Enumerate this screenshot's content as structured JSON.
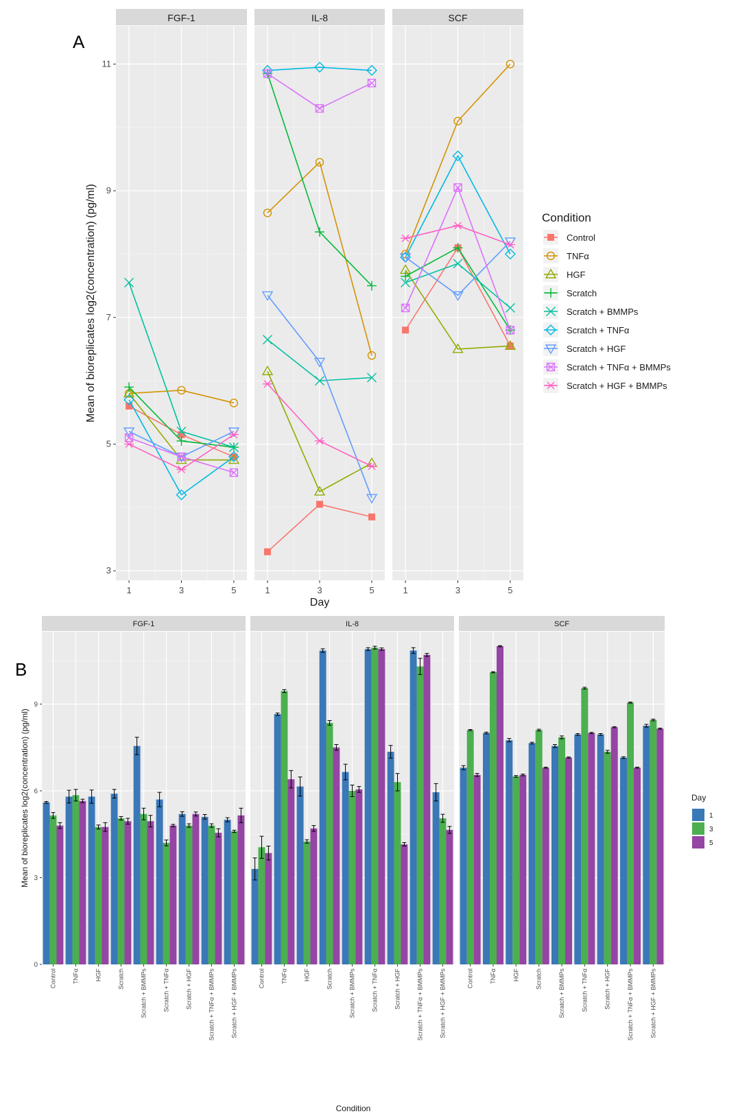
{
  "panel_a_label": "A",
  "panel_b_label": "B",
  "chart_data": [
    {
      "type": "line",
      "title": "",
      "facets": [
        "FGF-1",
        "IL-8",
        "SCF"
      ],
      "x": [
        1,
        3,
        5
      ],
      "x_ticks": [
        "1",
        "3",
        "5"
      ],
      "xlabel": "Day",
      "ylabel": "Mean of bioreplicates log2(concentration) (pg/ml)",
      "ylim": [
        2.85,
        11.6
      ],
      "y_ticks": [
        3,
        5,
        7,
        9,
        11
      ],
      "y_tick_labels": [
        "3",
        "5",
        "7",
        "9",
        "11"
      ],
      "legend_title": "Condition",
      "legend_position": "right",
      "series": [
        {
          "name": "Control",
          "color": "#F8766D",
          "marker": "square-filled",
          "values": {
            "FGF-1": [
              5.6,
              5.15,
              4.8
            ],
            "IL-8": [
              3.3,
              4.05,
              3.85
            ],
            "SCF": [
              6.8,
              8.1,
              6.55
            ]
          }
        },
        {
          "name": "TNFα",
          "color": "#D39200",
          "marker": "circle",
          "values": {
            "FGF-1": [
              5.8,
              5.85,
              5.65
            ],
            "IL-8": [
              8.65,
              9.45,
              6.4
            ],
            "SCF": [
              8.0,
              10.1,
              11.0
            ]
          }
        },
        {
          "name": "HGF",
          "color": "#93AA00",
          "marker": "triangle-up",
          "values": {
            "FGF-1": [
              5.8,
              4.75,
              4.75
            ],
            "IL-8": [
              6.15,
              4.25,
              4.7
            ],
            "SCF": [
              7.75,
              6.5,
              6.55
            ]
          }
        },
        {
          "name": "Scratch",
          "color": "#00BA38",
          "marker": "plus",
          "values": {
            "FGF-1": [
              5.9,
              5.05,
              4.95
            ],
            "IL-8": [
              10.85,
              8.35,
              7.5
            ],
            "SCF": [
              7.65,
              8.1,
              6.8
            ]
          }
        },
        {
          "name": "Scratch + BMMPs",
          "color": "#00C19F",
          "marker": "cross",
          "values": {
            "FGF-1": [
              7.55,
              5.2,
              4.95
            ],
            "IL-8": [
              6.65,
              6.0,
              6.05
            ],
            "SCF": [
              7.55,
              7.85,
              7.15
            ]
          }
        },
        {
          "name": "Scratch + TNFα",
          "color": "#00B9E3",
          "marker": "diamond",
          "values": {
            "FGF-1": [
              5.7,
              4.2,
              4.8
            ],
            "IL-8": [
              10.9,
              10.95,
              10.9
            ],
            "SCF": [
              7.95,
              9.55,
              8.0
            ]
          }
        },
        {
          "name": "Scratch + HGF",
          "color": "#619CFF",
          "marker": "triangle-down",
          "values": {
            "FGF-1": [
              5.2,
              4.8,
              5.2
            ],
            "IL-8": [
              7.35,
              6.3,
              4.15
            ],
            "SCF": [
              7.95,
              7.35,
              8.2
            ]
          }
        },
        {
          "name": "Scratch + TNFα + BMMPs",
          "color": "#DB72FB",
          "marker": "square-cross",
          "values": {
            "FGF-1": [
              5.1,
              4.8,
              4.55
            ],
            "IL-8": [
              10.85,
              10.3,
              10.7
            ],
            "SCF": [
              7.15,
              9.05,
              6.8
            ]
          }
        },
        {
          "name": "Scratch + HGF + BMMPs",
          "color": "#FF61C3",
          "marker": "asterisk",
          "values": {
            "FGF-1": [
              5.0,
              4.6,
              5.15
            ],
            "IL-8": [
              5.95,
              5.05,
              4.65
            ],
            "SCF": [
              8.25,
              8.45,
              8.15
            ]
          }
        }
      ]
    },
    {
      "type": "bar",
      "title": "",
      "facets": [
        "FGF-1",
        "IL-8",
        "SCF"
      ],
      "categories": [
        "Control",
        "TNFα",
        "HGF",
        "Scratch",
        "Scratch + BMMPs",
        "Scratch + TNFα",
        "Scratch + HGF",
        "Scratch + TNFα + BMMPs",
        "Scratch + HGF + BMMPs"
      ],
      "xlabel": "Condition",
      "ylabel": "Mean of bioreplicates log2(concentration) (pg/ml)",
      "ylim": [
        0,
        11.5
      ],
      "y_ticks": [
        0,
        3,
        6,
        9
      ],
      "y_tick_labels": [
        "0",
        "3",
        "6",
        "9"
      ],
      "legend_title": "Day",
      "legend_position": "right",
      "series": [
        {
          "name": "1",
          "color": "#3A78B8",
          "values": {
            "FGF-1": [
              5.6,
              5.8,
              5.8,
              5.9,
              7.55,
              5.7,
              5.2,
              5.1,
              5.0
            ],
            "IL-8": [
              3.3,
              8.65,
              6.15,
              10.85,
              6.65,
              10.9,
              7.35,
              10.85,
              5.95
            ],
            "SCF": [
              6.8,
              8.0,
              7.75,
              7.65,
              7.55,
              7.95,
              7.95,
              7.15,
              8.25
            ]
          },
          "errors": {
            "FGF-1": [
              0.03,
              0.22,
              0.23,
              0.15,
              0.3,
              0.25,
              0.08,
              0.08,
              0.07
            ],
            "IL-8": [
              0.38,
              0.04,
              0.33,
              0.06,
              0.27,
              0.05,
              0.22,
              0.1,
              0.3
            ],
            "SCF": [
              0.07,
              0.03,
              0.06,
              0.03,
              0.05,
              0.03,
              0.03,
              0.03,
              0.05
            ]
          }
        },
        {
          "name": "3",
          "color": "#4CAF50",
          "values": {
            "FGF-1": [
              5.15,
              5.85,
              4.75,
              5.05,
              5.2,
              4.2,
              4.8,
              4.8,
              4.6
            ],
            "IL-8": [
              4.05,
              9.45,
              4.25,
              8.35,
              6.0,
              10.95,
              6.3,
              10.3,
              5.05
            ],
            "SCF": [
              8.1,
              10.1,
              6.5,
              8.1,
              7.85,
              9.55,
              7.35,
              9.05,
              8.45
            ]
          },
          "errors": {
            "FGF-1": [
              0.1,
              0.2,
              0.07,
              0.06,
              0.2,
              0.1,
              0.06,
              0.06,
              0.04
            ],
            "IL-8": [
              0.38,
              0.05,
              0.06,
              0.08,
              0.2,
              0.05,
              0.3,
              0.28,
              0.14
            ],
            "SCF": [
              0.02,
              0.02,
              0.03,
              0.03,
              0.05,
              0.03,
              0.05,
              0.02,
              0.03
            ]
          }
        },
        {
          "name": "5",
          "color": "#9545A3",
          "values": {
            "FGF-1": [
              4.8,
              5.65,
              4.75,
              4.95,
              4.95,
              4.8,
              5.2,
              4.55,
              5.15
            ],
            "IL-8": [
              3.85,
              6.4,
              4.7,
              7.5,
              6.05,
              10.9,
              4.15,
              10.7,
              4.65
            ],
            "SCF": [
              6.55,
              11.0,
              6.55,
              6.8,
              7.15,
              8.0,
              8.2,
              6.8,
              8.15
            ]
          },
          "errors": {
            "FGF-1": [
              0.1,
              0.06,
              0.15,
              0.1,
              0.2,
              0.04,
              0.07,
              0.14,
              0.25
            ],
            "IL-8": [
              0.24,
              0.3,
              0.1,
              0.1,
              0.1,
              0.04,
              0.06,
              0.05,
              0.12
            ],
            "SCF": [
              0.05,
              0.02,
              0.03,
              0.02,
              0.02,
              0.02,
              0.02,
              0.02,
              0.02
            ]
          }
        }
      ]
    }
  ]
}
